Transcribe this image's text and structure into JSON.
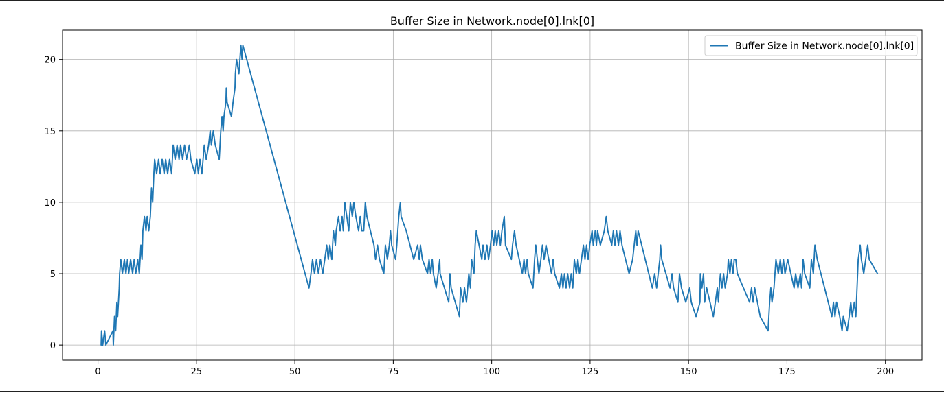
{
  "chart_data": {
    "type": "line",
    "title": "Buffer Size in Network.node[0].lnk[0]",
    "xlabel": "",
    "ylabel": "",
    "xlim": [
      -9,
      209.3
    ],
    "ylim": [
      -1.05,
      22.05
    ],
    "x_ticks": [
      0,
      25,
      50,
      75,
      100,
      125,
      150,
      175,
      200
    ],
    "y_ticks": [
      0,
      5,
      10,
      15,
      20
    ],
    "grid": true,
    "legend_position": "upper right",
    "series": [
      {
        "name": "Buffer Size in Network.node[0].lnk[0]",
        "color": "#1f77b4",
        "points": [
          [
            0.8,
            0
          ],
          [
            0.9,
            1
          ],
          [
            1.2,
            0
          ],
          [
            1.7,
            1
          ],
          [
            2.0,
            0
          ],
          [
            3.8,
            1
          ],
          [
            3.9,
            0
          ],
          [
            4.2,
            2
          ],
          [
            4.5,
            1
          ],
          [
            4.8,
            3
          ],
          [
            5.0,
            2
          ],
          [
            5.4,
            4
          ],
          [
            5.5,
            5
          ],
          [
            5.8,
            6
          ],
          [
            6.2,
            5
          ],
          [
            6.7,
            6
          ],
          [
            7.1,
            5
          ],
          [
            7.5,
            6
          ],
          [
            7.8,
            5
          ],
          [
            8.3,
            6
          ],
          [
            8.8,
            5
          ],
          [
            9.2,
            6
          ],
          [
            9.6,
            5
          ],
          [
            10.1,
            6
          ],
          [
            10.5,
            5
          ],
          [
            10.9,
            7
          ],
          [
            11.2,
            6
          ],
          [
            11.4,
            8
          ],
          [
            11.8,
            9
          ],
          [
            12.2,
            8
          ],
          [
            12.5,
            9
          ],
          [
            12.9,
            8
          ],
          [
            13.3,
            9
          ],
          [
            13.6,
            11
          ],
          [
            13.9,
            10
          ],
          [
            14.2,
            12
          ],
          [
            14.4,
            13
          ],
          [
            14.9,
            12
          ],
          [
            15.4,
            13
          ],
          [
            15.8,
            12
          ],
          [
            16.3,
            13
          ],
          [
            16.8,
            12
          ],
          [
            17.2,
            13
          ],
          [
            17.7,
            12
          ],
          [
            18.2,
            13
          ],
          [
            18.7,
            12
          ],
          [
            19.1,
            14
          ],
          [
            19.6,
            13
          ],
          [
            20.1,
            14
          ],
          [
            20.6,
            13
          ],
          [
            21.0,
            14
          ],
          [
            21.5,
            13
          ],
          [
            22.0,
            14
          ],
          [
            22.5,
            13
          ],
          [
            23.2,
            14
          ],
          [
            23.6,
            13
          ],
          [
            24.1,
            12.5
          ],
          [
            24.6,
            12
          ],
          [
            25.1,
            13
          ],
          [
            25.5,
            12
          ],
          [
            25.9,
            13
          ],
          [
            26.4,
            12
          ],
          [
            27.0,
            14
          ],
          [
            27.5,
            13
          ],
          [
            28.1,
            14
          ],
          [
            28.5,
            15
          ],
          [
            28.8,
            14
          ],
          [
            29.3,
            15
          ],
          [
            29.8,
            14
          ],
          [
            30.8,
            13
          ],
          [
            31.2,
            15
          ],
          [
            31.5,
            16
          ],
          [
            31.8,
            15
          ],
          [
            32.0,
            16
          ],
          [
            32.5,
            17
          ],
          [
            32.6,
            18
          ],
          [
            32.8,
            17
          ],
          [
            33.9,
            16
          ],
          [
            34.3,
            17
          ],
          [
            34.8,
            18
          ],
          [
            34.9,
            19
          ],
          [
            35.2,
            20
          ],
          [
            35.8,
            19
          ],
          [
            36.3,
            21
          ],
          [
            36.6,
            20
          ],
          [
            36.8,
            21
          ],
          [
            53.6,
            4
          ],
          [
            54.1,
            5
          ],
          [
            54.5,
            6
          ],
          [
            55.0,
            5
          ],
          [
            55.5,
            6
          ],
          [
            56.0,
            5
          ],
          [
            56.5,
            6
          ],
          [
            57.1,
            5
          ],
          [
            57.6,
            6
          ],
          [
            58.1,
            7
          ],
          [
            58.5,
            6
          ],
          [
            58.9,
            7
          ],
          [
            59.4,
            6
          ],
          [
            59.8,
            8
          ],
          [
            60.3,
            7
          ],
          [
            60.5,
            8
          ],
          [
            61.1,
            9
          ],
          [
            61.5,
            8
          ],
          [
            62.0,
            9
          ],
          [
            62.3,
            8
          ],
          [
            62.7,
            10
          ],
          [
            63.2,
            9
          ],
          [
            63.7,
            8
          ],
          [
            64.1,
            10
          ],
          [
            64.6,
            9
          ],
          [
            65.0,
            10
          ],
          [
            65.5,
            9
          ],
          [
            66.2,
            8
          ],
          [
            66.6,
            9
          ],
          [
            67.0,
            8
          ],
          [
            67.5,
            8
          ],
          [
            67.9,
            10
          ],
          [
            68.3,
            9
          ],
          [
            70.1,
            7
          ],
          [
            70.5,
            6
          ],
          [
            71.0,
            7
          ],
          [
            71.5,
            6
          ],
          [
            72.6,
            5
          ],
          [
            73.0,
            7
          ],
          [
            73.5,
            6
          ],
          [
            74.0,
            7
          ],
          [
            74.3,
            8
          ],
          [
            74.6,
            7
          ],
          [
            75.6,
            6
          ],
          [
            75.9,
            7
          ],
          [
            76.4,
            9
          ],
          [
            76.8,
            10
          ],
          [
            77.0,
            9
          ],
          [
            78.3,
            8
          ],
          [
            80.2,
            6
          ],
          [
            81.2,
            7
          ],
          [
            81.6,
            6
          ],
          [
            81.9,
            7
          ],
          [
            82.4,
            6
          ],
          [
            83.7,
            5
          ],
          [
            84.1,
            6
          ],
          [
            84.5,
            5
          ],
          [
            84.9,
            6
          ],
          [
            85.2,
            5
          ],
          [
            85.9,
            4
          ],
          [
            86.4,
            5
          ],
          [
            86.8,
            6
          ],
          [
            86.9,
            5
          ],
          [
            89.1,
            3
          ],
          [
            89.4,
            5
          ],
          [
            89.7,
            4
          ],
          [
            91.8,
            2
          ],
          [
            92.1,
            4
          ],
          [
            92.7,
            3
          ],
          [
            93.1,
            4
          ],
          [
            93.6,
            3
          ],
          [
            94.2,
            5
          ],
          [
            94.6,
            4
          ],
          [
            94.9,
            6
          ],
          [
            95.5,
            5
          ],
          [
            95.8,
            7
          ],
          [
            96.1,
            8
          ],
          [
            97.5,
            6
          ],
          [
            97.8,
            7
          ],
          [
            98.3,
            6
          ],
          [
            98.8,
            7
          ],
          [
            99.2,
            6
          ],
          [
            99.7,
            7
          ],
          [
            100.1,
            8
          ],
          [
            100.5,
            7
          ],
          [
            100.9,
            8
          ],
          [
            101.3,
            7
          ],
          [
            101.8,
            8
          ],
          [
            102.2,
            7
          ],
          [
            102.6,
            8
          ],
          [
            103.2,
            9
          ],
          [
            103.5,
            7
          ],
          [
            105.0,
            6
          ],
          [
            105.3,
            7
          ],
          [
            105.8,
            8
          ],
          [
            106.2,
            7
          ],
          [
            107.8,
            5
          ],
          [
            108.2,
            6
          ],
          [
            108.6,
            5
          ],
          [
            109.0,
            6
          ],
          [
            109.3,
            5
          ],
          [
            110.5,
            4
          ],
          [
            110.9,
            6
          ],
          [
            111.2,
            7
          ],
          [
            111.6,
            6
          ],
          [
            112.0,
            5
          ],
          [
            112.5,
            6
          ],
          [
            112.9,
            7
          ],
          [
            113.3,
            6
          ],
          [
            113.8,
            7
          ],
          [
            115.2,
            5
          ],
          [
            115.6,
            6
          ],
          [
            116.0,
            5
          ],
          [
            117.2,
            4
          ],
          [
            117.7,
            5
          ],
          [
            118.1,
            4
          ],
          [
            118.5,
            5
          ],
          [
            118.9,
            4
          ],
          [
            119.3,
            5
          ],
          [
            119.8,
            4
          ],
          [
            120.2,
            5
          ],
          [
            120.6,
            4
          ],
          [
            121.0,
            6
          ],
          [
            121.5,
            5
          ],
          [
            121.9,
            6
          ],
          [
            122.3,
            5
          ],
          [
            122.8,
            6
          ],
          [
            123.3,
            7
          ],
          [
            123.7,
            6
          ],
          [
            124.1,
            7
          ],
          [
            124.5,
            6
          ],
          [
            124.9,
            7
          ],
          [
            125.5,
            8
          ],
          [
            125.8,
            7
          ],
          [
            126.3,
            8
          ],
          [
            126.6,
            7
          ],
          [
            126.9,
            8
          ],
          [
            127.6,
            7
          ],
          [
            128.6,
            8
          ],
          [
            129.1,
            9
          ],
          [
            129.5,
            8
          ],
          [
            130.5,
            7
          ],
          [
            130.9,
            8
          ],
          [
            131.3,
            7
          ],
          [
            131.7,
            8
          ],
          [
            132.2,
            7
          ],
          [
            132.6,
            8
          ],
          [
            133.1,
            7
          ],
          [
            134.9,
            5
          ],
          [
            135.8,
            6
          ],
          [
            136.6,
            8
          ],
          [
            136.9,
            7
          ],
          [
            137.2,
            8
          ],
          [
            140.8,
            4
          ],
          [
            141.4,
            5
          ],
          [
            141.9,
            4
          ],
          [
            142.7,
            6
          ],
          [
            142.9,
            7
          ],
          [
            143.2,
            6
          ],
          [
            145.3,
            4
          ],
          [
            145.8,
            5
          ],
          [
            146.2,
            4
          ],
          [
            147.3,
            3
          ],
          [
            147.7,
            5
          ],
          [
            148.2,
            4
          ],
          [
            149.3,
            3
          ],
          [
            150.3,
            4
          ],
          [
            150.7,
            3
          ],
          [
            151.9,
            2
          ],
          [
            152.9,
            3
          ],
          [
            153.0,
            5
          ],
          [
            153.4,
            4
          ],
          [
            153.8,
            5
          ],
          [
            154.1,
            3
          ],
          [
            154.6,
            4
          ],
          [
            156.3,
            2
          ],
          [
            157.3,
            4
          ],
          [
            157.6,
            3
          ],
          [
            157.8,
            4
          ],
          [
            158.1,
            5
          ],
          [
            158.5,
            4
          ],
          [
            158.9,
            5
          ],
          [
            159.3,
            4
          ],
          [
            159.9,
            5
          ],
          [
            160.1,
            6
          ],
          [
            160.5,
            5
          ],
          [
            160.9,
            6
          ],
          [
            161.3,
            5
          ],
          [
            161.6,
            6
          ],
          [
            162.0,
            6
          ],
          [
            162.4,
            5
          ],
          [
            165.5,
            3
          ],
          [
            166.0,
            4
          ],
          [
            166.4,
            3
          ],
          [
            166.8,
            4
          ],
          [
            168.2,
            2
          ],
          [
            170.2,
            1
          ],
          [
            170.6,
            3
          ],
          [
            170.9,
            4
          ],
          [
            171.2,
            3
          ],
          [
            171.7,
            4
          ],
          [
            172.2,
            6
          ],
          [
            172.8,
            5
          ],
          [
            173.3,
            6
          ],
          [
            173.7,
            5
          ],
          [
            174.1,
            6
          ],
          [
            174.5,
            5
          ],
          [
            175.2,
            6
          ],
          [
            176.8,
            4
          ],
          [
            177.2,
            5
          ],
          [
            177.8,
            4
          ],
          [
            178.4,
            5
          ],
          [
            178.7,
            4
          ],
          [
            179.1,
            6
          ],
          [
            179.5,
            5
          ],
          [
            180.8,
            4
          ],
          [
            181.2,
            6
          ],
          [
            181.7,
            5
          ],
          [
            182.1,
            7
          ],
          [
            182.7,
            6
          ],
          [
            186.4,
            2
          ],
          [
            186.8,
            3
          ],
          [
            187.2,
            2
          ],
          [
            187.6,
            3
          ],
          [
            188.4,
            2
          ],
          [
            189.0,
            1
          ],
          [
            189.3,
            2
          ],
          [
            190.3,
            1
          ],
          [
            190.8,
            2
          ],
          [
            191.2,
            3
          ],
          [
            191.6,
            2
          ],
          [
            192.1,
            3
          ],
          [
            192.5,
            2
          ],
          [
            193.1,
            6
          ],
          [
            193.6,
            7
          ],
          [
            193.9,
            6
          ],
          [
            194.5,
            5
          ],
          [
            195.0,
            6
          ],
          [
            195.5,
            7
          ],
          [
            195.9,
            6
          ],
          [
            198.0,
            5
          ]
        ]
      }
    ]
  }
}
